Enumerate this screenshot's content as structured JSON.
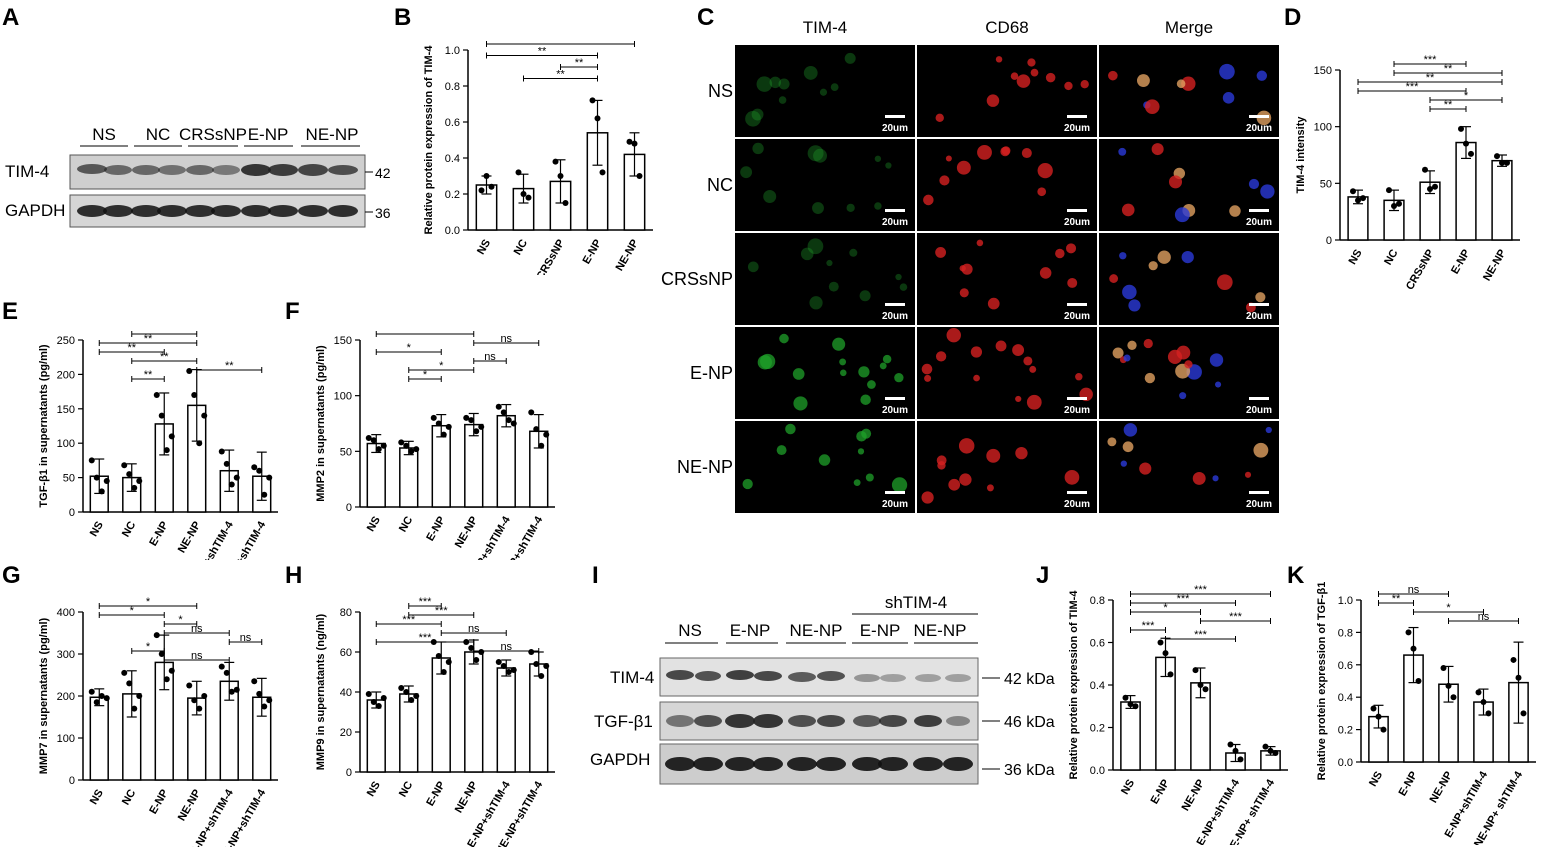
{
  "panel_labels": {
    "A": "A",
    "B": "B",
    "C": "C",
    "D": "D",
    "E": "E",
    "F": "F",
    "G": "G",
    "H": "H",
    "I": "I",
    "J": "J",
    "K": "K"
  },
  "blot_A": {
    "groups": [
      "NS",
      "NC",
      "CRSsNP",
      "E-NP",
      "NE-NP"
    ],
    "rows": [
      {
        "label": "TIM-4",
        "kda": "42 kDa"
      },
      {
        "label": "GAPDH",
        "kda": "36 kDa"
      }
    ]
  },
  "blot_I": {
    "top_group": "shTIM-4",
    "groups": [
      "NS",
      "E-NP",
      "NE-NP",
      "E-NP",
      "NE-NP"
    ],
    "rows": [
      {
        "label": "TIM-4",
        "kda": "42 kDa"
      },
      {
        "label": "TGF-β1",
        "kda": "46 kDa"
      },
      {
        "label": "GAPDH",
        "kda": "36 kDa"
      }
    ]
  },
  "micro_C": {
    "columns": [
      "TIM-4",
      "CD68",
      "Merge"
    ],
    "rows": [
      "NS",
      "NC",
      "CRSsNP",
      "E-NP",
      "NE-NP"
    ],
    "scale_bar": "20um"
  },
  "colors": {
    "tim4_channel": "#1fa02a",
    "cd68_channel": "#d42020",
    "dapi_channel": "#2a3ad8",
    "bar_fill": "#ffffff",
    "stroke": "#000000"
  },
  "chart_data": [
    {
      "id": "B",
      "type": "bar",
      "ylabel": "Relative protein expression of TIM-4",
      "categories": [
        "NS",
        "NC",
        "CRSsNP",
        "E-NP",
        "NE-NP"
      ],
      "values": [
        0.25,
        0.23,
        0.27,
        0.54,
        0.42
      ],
      "errors": [
        0.05,
        0.08,
        0.12,
        0.18,
        0.12
      ],
      "points": [
        [
          0.22,
          0.3,
          0.24
        ],
        [
          0.32,
          0.2,
          0.18
        ],
        [
          0.38,
          0.3,
          0.15
        ],
        [
          0.72,
          0.62,
          0.32
        ],
        [
          0.49,
          0.48,
          0.3
        ]
      ],
      "ylim": [
        0,
        1.0
      ],
      "yticks": [
        0.0,
        0.2,
        0.4,
        0.6,
        0.8,
        1.0
      ],
      "tick_decimals": 1,
      "significance": [
        {
          "from": 0,
          "to": 4,
          "label": "*"
        },
        {
          "from": 0,
          "to": 3,
          "label": "**"
        },
        {
          "from": 2,
          "to": 3,
          "label": "**"
        },
        {
          "from": 1,
          "to": 3,
          "label": "**"
        }
      ]
    },
    {
      "id": "D",
      "type": "bar",
      "ylabel": "TIM-4 intensity",
      "categories": [
        "NS",
        "NC",
        "CRSsNP",
        "E-NP",
        "NE-NP"
      ],
      "values": [
        38,
        35,
        51,
        86,
        70
      ],
      "errors": [
        6,
        9,
        10,
        14,
        5
      ],
      "points": [
        [
          43,
          35,
          37
        ],
        [
          44,
          30,
          32
        ],
        [
          62,
          45,
          47
        ],
        [
          98,
          85,
          76
        ],
        [
          74,
          68,
          68
        ]
      ],
      "ylim": [
        0,
        150
      ],
      "yticks": [
        0,
        50,
        100,
        150
      ],
      "tick_decimals": 0,
      "significance": [
        {
          "from": 1,
          "to": 3,
          "label": "***"
        },
        {
          "from": 1,
          "to": 4,
          "label": "**"
        },
        {
          "from": 0,
          "to": 4,
          "label": "**"
        },
        {
          "from": 0,
          "to": 3,
          "label": "***"
        },
        {
          "from": 2,
          "to": 4,
          "label": "*"
        },
        {
          "from": 2,
          "to": 3,
          "label": "**"
        }
      ]
    },
    {
      "id": "E",
      "type": "bar",
      "ylabel": "TGF-β1 in supernatants (pg/ml)",
      "categories": [
        "NS",
        "NC",
        "E-NP",
        "NE-NP",
        "E-NP+shTIM-4",
        "NE-NP+shTIM-4"
      ],
      "values": [
        52,
        50,
        128,
        155,
        60,
        52
      ],
      "errors": [
        25,
        20,
        45,
        52,
        30,
        35
      ],
      "points": [
        [
          75,
          50,
          30,
          45
        ],
        [
          68,
          55,
          35,
          45
        ],
        [
          170,
          140,
          90,
          110
        ],
        [
          205,
          170,
          100,
          140
        ],
        [
          88,
          70,
          40,
          50
        ],
        [
          65,
          60,
          25,
          50
        ]
      ],
      "ylim": [
        0,
        250
      ],
      "yticks": [
        0,
        50,
        100,
        150,
        200,
        250
      ],
      "tick_decimals": 0,
      "significance": [
        {
          "from": 1,
          "to": 3,
          "label": "*"
        },
        {
          "from": 0,
          "to": 3,
          "label": "**"
        },
        {
          "from": 0,
          "to": 2,
          "label": "**"
        },
        {
          "from": 1,
          "to": 3,
          "label": "**"
        },
        {
          "from": 3,
          "to": 5,
          "label": "**"
        },
        {
          "from": 1,
          "to": 2,
          "label": "**"
        }
      ]
    },
    {
      "id": "F",
      "type": "bar",
      "ylabel": "MMP2 in supernatants (pg/ml)",
      "categories": [
        "NS",
        "NC",
        "E-NP",
        "NE-NP",
        "E-NP+shTIM-4",
        "NE-NP+shTIM-4"
      ],
      "values": [
        57,
        53,
        73,
        74,
        82,
        68
      ],
      "errors": [
        8,
        6,
        10,
        10,
        10,
        15
      ],
      "points": [
        [
          62,
          60,
          52,
          55
        ],
        [
          58,
          55,
          50,
          52
        ],
        [
          80,
          75,
          65,
          72
        ],
        [
          80,
          78,
          68,
          72
        ],
        [
          90,
          85,
          78,
          75
        ],
        [
          85,
          70,
          55,
          65
        ]
      ],
      "ylim": [
        0,
        150
      ],
      "yticks": [
        0,
        50,
        100,
        150
      ],
      "tick_decimals": 0,
      "significance": [
        {
          "from": 0,
          "to": 3,
          "label": "*"
        },
        {
          "from": 3,
          "to": 5,
          "label": "ns"
        },
        {
          "from": 0,
          "to": 2,
          "label": "*"
        },
        {
          "from": 3,
          "to": 4,
          "label": "ns"
        },
        {
          "from": 1,
          "to": 3,
          "label": "*"
        },
        {
          "from": 1,
          "to": 2,
          "label": "*"
        }
      ]
    },
    {
      "id": "G",
      "type": "bar",
      "ylabel": "MMP7 in supernatants (pg/ml)",
      "categories": [
        "NS",
        "NC",
        "E-NP",
        "NE-NP",
        "E-NP+shTIM-4",
        "NE-NP+shTIM-4"
      ],
      "values": [
        197,
        205,
        280,
        195,
        235,
        197
      ],
      "errors": [
        20,
        55,
        65,
        40,
        45,
        45
      ],
      "points": [
        [
          210,
          185,
          200,
          195
        ],
        [
          255,
          230,
          170,
          200
        ],
        [
          345,
          300,
          240,
          260
        ],
        [
          225,
          190,
          170,
          200
        ],
        [
          270,
          255,
          210,
          215
        ],
        [
          235,
          205,
          175,
          190
        ]
      ],
      "ylim": [
        0,
        400
      ],
      "yticks": [
        0,
        100,
        200,
        300,
        400
      ],
      "tick_decimals": 0,
      "significance": [
        {
          "from": 0,
          "to": 3,
          "label": "*"
        },
        {
          "from": 0,
          "to": 2,
          "label": "*"
        },
        {
          "from": 2,
          "to": 3,
          "label": "*"
        },
        {
          "from": 2,
          "to": 4,
          "label": "ns"
        },
        {
          "from": 4,
          "to": 5,
          "label": "ns"
        },
        {
          "from": 1,
          "to": 2,
          "label": "*"
        },
        {
          "from": 2,
          "to": 4,
          "label": "ns"
        }
      ]
    },
    {
      "id": "H",
      "type": "bar",
      "ylabel": "MMP9 in supernatants (ng/ml)",
      "categories": [
        "NS",
        "NC",
        "E-NP",
        "NE-NP",
        "E-NP+shTIM-4",
        "NE-NP+shTIM-4"
      ],
      "values": [
        36,
        39,
        57,
        60,
        52,
        54
      ],
      "errors": [
        4,
        4,
        8,
        6,
        4,
        6
      ],
      "points": [
        [
          39,
          35,
          33,
          37
        ],
        [
          42,
          40,
          36,
          38
        ],
        [
          65,
          58,
          50,
          55
        ],
        [
          65,
          62,
          56,
          60
        ],
        [
          55,
          53,
          50,
          51
        ],
        [
          60,
          54,
          48,
          53
        ]
      ],
      "ylim": [
        0,
        80
      ],
      "yticks": [
        0,
        20,
        40,
        60,
        80
      ],
      "tick_decimals": 0,
      "significance": [
        {
          "from": 1,
          "to": 2,
          "label": "***"
        },
        {
          "from": 1,
          "to": 3,
          "label": "***"
        },
        {
          "from": 0,
          "to": 2,
          "label": "***"
        },
        {
          "from": 2,
          "to": 4,
          "label": "ns"
        },
        {
          "from": 0,
          "to": 3,
          "label": "***"
        },
        {
          "from": 3,
          "to": 5,
          "label": "ns"
        }
      ]
    },
    {
      "id": "J",
      "type": "bar",
      "ylabel": "Relative protein expression of TIM-4",
      "categories": [
        "NS",
        "E-NP",
        "NE-NP",
        "E-NP+shTIM-4",
        "NE-NP+ shTIM-4"
      ],
      "values": [
        0.32,
        0.53,
        0.41,
        0.08,
        0.09
      ],
      "errors": [
        0.03,
        0.09,
        0.07,
        0.04,
        0.02
      ],
      "points": [
        [
          0.34,
          0.31,
          0.3
        ],
        [
          0.6,
          0.55,
          0.45
        ],
        [
          0.47,
          0.4,
          0.38
        ],
        [
          0.12,
          0.09,
          0.05
        ],
        [
          0.11,
          0.09,
          0.08
        ]
      ],
      "ylim": [
        0,
        0.8
      ],
      "yticks": [
        0.0,
        0.2,
        0.4,
        0.6,
        0.8
      ],
      "tick_decimals": 1,
      "significance": [
        {
          "from": 0,
          "to": 4,
          "label": "***"
        },
        {
          "from": 0,
          "to": 3,
          "label": "***"
        },
        {
          "from": 0,
          "to": 2,
          "label": "*"
        },
        {
          "from": 2,
          "to": 4,
          "label": "***"
        },
        {
          "from": 0,
          "to": 1,
          "label": "***"
        },
        {
          "from": 1,
          "to": 3,
          "label": "***"
        }
      ]
    },
    {
      "id": "K",
      "type": "bar",
      "ylabel": "Relative protein expression of TGF-β1",
      "categories": [
        "NS",
        "E-NP",
        "NE-NP",
        "E-NP+shTIM-4",
        "NE-NP+ shTIM-4"
      ],
      "values": [
        0.28,
        0.66,
        0.48,
        0.37,
        0.49
      ],
      "errors": [
        0.07,
        0.17,
        0.11,
        0.08,
        0.25
      ],
      "points": [
        [
          0.33,
          0.28,
          0.2
        ],
        [
          0.8,
          0.7,
          0.5
        ],
        [
          0.58,
          0.47,
          0.4
        ],
        [
          0.43,
          0.37,
          0.3
        ],
        [
          0.63,
          0.52,
          0.3
        ]
      ],
      "ylim": [
        0,
        1.0
      ],
      "yticks": [
        0.0,
        0.2,
        0.4,
        0.6,
        0.8,
        1.0
      ],
      "tick_decimals": 1,
      "significance": [
        {
          "from": 0,
          "to": 2,
          "label": "ns"
        },
        {
          "from": 0,
          "to": 1,
          "label": "**"
        },
        {
          "from": 1,
          "to": 3,
          "label": "*"
        },
        {
          "from": 2,
          "to": 4,
          "label": "ns"
        }
      ]
    }
  ]
}
